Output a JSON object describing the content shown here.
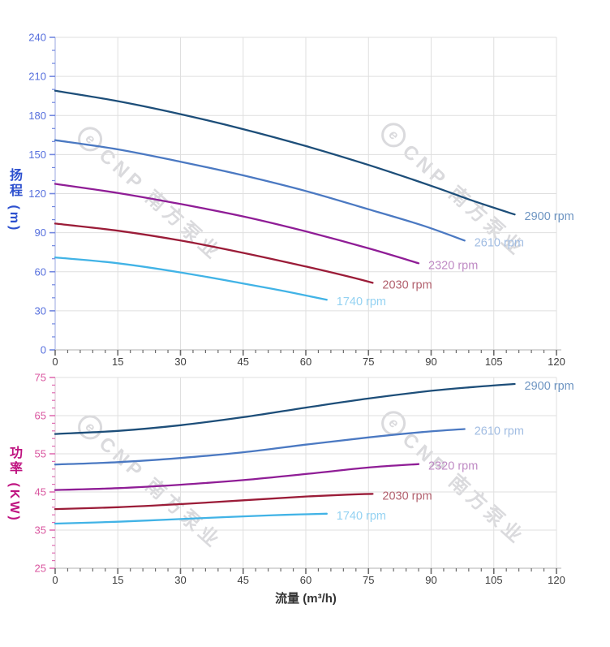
{
  "watermark": {
    "logo_glyph": "e",
    "text": "CNP 南方泵业"
  },
  "colors": {
    "background": "#ffffff",
    "grid": "#dfdfdf",
    "x_axis_line": "#cccccc",
    "x_axis_tick": "#6a6a6a",
    "x_tick_label": "#3d3d3d",
    "x_axis_title": "#333333",
    "head_axis_title": "#2d50cf",
    "head_tick_label": "#566fdd",
    "head_axis_tick": "#7388e0",
    "head_axis_line": "#b6c0ea",
    "power_axis_title": "#bf1380",
    "power_tick_label": "#d9569f",
    "power_axis_tick": "#e06fb2",
    "power_axis_line": "#e3d3de"
  },
  "chart_data": [
    {
      "type": "line",
      "title": "",
      "xlabel": "流量 (m³/h)",
      "ylabel": "扬程 (m)",
      "xlim": [
        0,
        120
      ],
      "ylim": [
        0,
        240
      ],
      "x_major": 15,
      "x_minor": 3,
      "y_major": 30,
      "y_minor": 10,
      "grid": true,
      "x_ticks": [
        0,
        15,
        30,
        45,
        60,
        75,
        90,
        105,
        120
      ],
      "y_ticks": [
        0,
        30,
        60,
        90,
        120,
        150,
        180,
        210,
        240
      ],
      "legend_position": "at-line-end",
      "series": [
        {
          "name": "2900 rpm",
          "color": "#1d4e79",
          "label_color": "#6e95c2",
          "points": [
            [
              0,
              199
            ],
            [
              15,
              191
            ],
            [
              30,
              181
            ],
            [
              45,
              169.5
            ],
            [
              60,
              156.5
            ],
            [
              75,
              142
            ],
            [
              90,
              126
            ],
            [
              100,
              114.5
            ],
            [
              110,
              104
            ]
          ]
        },
        {
          "name": "2610 rpm",
          "color": "#4b79c2",
          "label_color": "#a0bce2",
          "points": [
            [
              0,
              161
            ],
            [
              15,
              154
            ],
            [
              30,
              144.5
            ],
            [
              45,
              134
            ],
            [
              60,
              122
            ],
            [
              75,
              108
            ],
            [
              88,
              95.5
            ],
            [
              98,
              84
            ]
          ]
        },
        {
          "name": "2320 rpm",
          "color": "#8f1d96",
          "label_color": "#bf8ac4",
          "points": [
            [
              0,
              127.5
            ],
            [
              15,
              120.5
            ],
            [
              30,
              112
            ],
            [
              45,
              102.5
            ],
            [
              60,
              91
            ],
            [
              75,
              78
            ],
            [
              87,
              66.5
            ]
          ]
        },
        {
          "name": "2030 rpm",
          "color": "#9b1c38",
          "label_color": "#b2616e",
          "points": [
            [
              0,
              97
            ],
            [
              15,
              91.5
            ],
            [
              30,
              84
            ],
            [
              45,
              74.5
            ],
            [
              60,
              64
            ],
            [
              70,
              56.5
            ],
            [
              76,
              51.5
            ]
          ]
        },
        {
          "name": "1740 rpm",
          "color": "#41b3e6",
          "label_color": "#94d2f2",
          "points": [
            [
              0,
              71
            ],
            [
              15,
              66.5
            ],
            [
              30,
              59.5
            ],
            [
              45,
              51
            ],
            [
              55,
              45
            ],
            [
              65,
              38.5
            ]
          ]
        }
      ]
    },
    {
      "type": "line",
      "title": "",
      "xlabel": "流量 (m³/h)",
      "ylabel": "功率 (KW)",
      "xlim": [
        0,
        120
      ],
      "ylim": [
        25,
        75
      ],
      "x_major": 15,
      "x_minor": 3,
      "y_major": 10,
      "y_minor": 2,
      "grid": true,
      "x_ticks": [
        0,
        15,
        30,
        45,
        60,
        75,
        90,
        105,
        120
      ],
      "y_ticks": [
        25,
        35,
        45,
        55,
        65,
        75
      ],
      "legend_position": "at-line-end",
      "series": [
        {
          "name": "2900 rpm",
          "color": "#1d4e79",
          "label_color": "#6e95c2",
          "points": [
            [
              0,
              60.2
            ],
            [
              15,
              61
            ],
            [
              30,
              62.5
            ],
            [
              45,
              64.6
            ],
            [
              60,
              67.1
            ],
            [
              75,
              69.5
            ],
            [
              90,
              71.5
            ],
            [
              100,
              72.5
            ],
            [
              110,
              73.3
            ]
          ]
        },
        {
          "name": "2610 rpm",
          "color": "#4b79c2",
          "label_color": "#a0bce2",
          "points": [
            [
              0,
              52.2
            ],
            [
              15,
              52.8
            ],
            [
              30,
              53.9
            ],
            [
              45,
              55.4
            ],
            [
              60,
              57.4
            ],
            [
              75,
              59.3
            ],
            [
              88,
              60.7
            ],
            [
              98,
              61.5
            ]
          ]
        },
        {
          "name": "2320 rpm",
          "color": "#8f1d96",
          "label_color": "#bf8ac4",
          "points": [
            [
              0,
              45.5
            ],
            [
              15,
              46
            ],
            [
              30,
              46.9
            ],
            [
              45,
              48.1
            ],
            [
              60,
              49.7
            ],
            [
              75,
              51.4
            ],
            [
              87,
              52.3
            ]
          ]
        },
        {
          "name": "2030 rpm",
          "color": "#9b1c38",
          "label_color": "#b2616e",
          "points": [
            [
              0,
              40.5
            ],
            [
              15,
              41
            ],
            [
              30,
              41.8
            ],
            [
              45,
              42.8
            ],
            [
              60,
              43.8
            ],
            [
              70,
              44.3
            ],
            [
              76,
              44.5
            ]
          ]
        },
        {
          "name": "1740 rpm",
          "color": "#41b3e6",
          "label_color": "#94d2f2",
          "points": [
            [
              0,
              36.7
            ],
            [
              15,
              37.2
            ],
            [
              30,
              37.9
            ],
            [
              45,
              38.6
            ],
            [
              55,
              39
            ],
            [
              65,
              39.3
            ]
          ]
        }
      ]
    }
  ]
}
